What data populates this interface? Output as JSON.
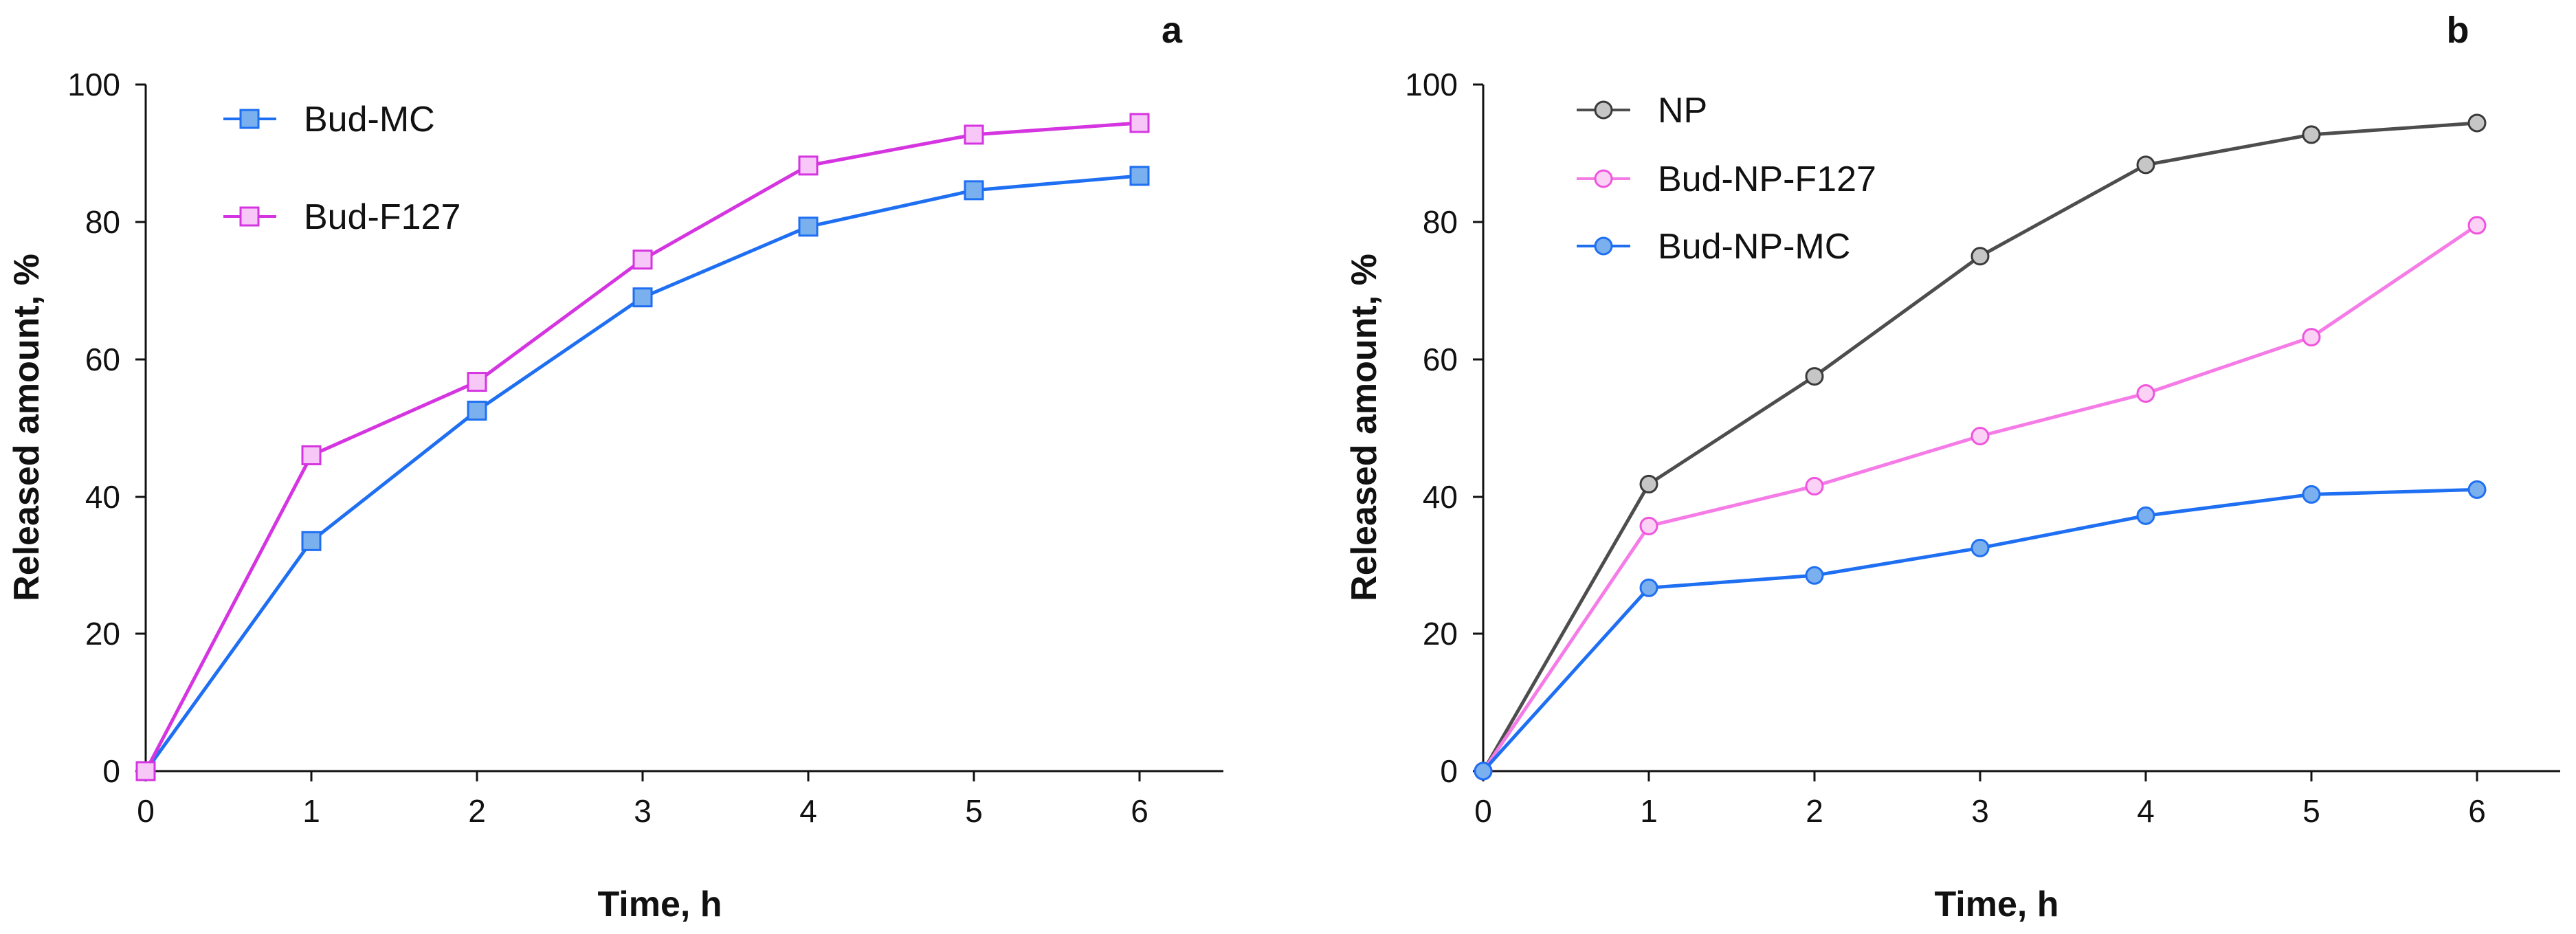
{
  "chart_data": [
    {
      "type": "line",
      "panel": "a",
      "title": "",
      "xlabel": "Time, h",
      "ylabel": "Released amount, %",
      "x": [
        0,
        1,
        2,
        3,
        4,
        5,
        6
      ],
      "xlim": [
        0,
        6.5
      ],
      "ylim": [
        0,
        100
      ],
      "xticks": [
        "0",
        "1",
        "2",
        "3",
        "4",
        "5",
        "6"
      ],
      "yticks": [
        "0",
        "20",
        "40",
        "60",
        "80",
        "100"
      ],
      "grid": false,
      "legend_position": "top-left",
      "series": [
        {
          "name": "Bud-MC",
          "marker": "square",
          "line_color": "#1f6ff2",
          "fill_color": "#7ab0ee",
          "edge_color": "#1f6ff2",
          "values": [
            0,
            33.5,
            52.5,
            69,
            79.3,
            84.6,
            86.7
          ]
        },
        {
          "name": "Bud-F127",
          "marker": "square",
          "line_color": "#d535e0",
          "fill_color": "#f7c8f7",
          "edge_color": "#d535e0",
          "values": [
            0,
            46,
            56.7,
            74.5,
            88.2,
            92.7,
            94.4
          ]
        }
      ]
    },
    {
      "type": "line",
      "panel": "b",
      "title": "",
      "xlabel": "Time, h",
      "ylabel": "Released amount, %",
      "x": [
        0,
        1,
        2,
        3,
        4,
        5,
        6
      ],
      "xlim": [
        0,
        6.5
      ],
      "ylim": [
        0,
        100
      ],
      "xticks": [
        "0",
        "1",
        "2",
        "3",
        "4",
        "5",
        "6"
      ],
      "yticks": [
        "0",
        "20",
        "40",
        "60",
        "80",
        "100"
      ],
      "grid": false,
      "legend_position": "top-left",
      "series": [
        {
          "name": "NP",
          "marker": "circle",
          "line_color": "#4d4d4d",
          "fill_color": "#c6c6c6",
          "edge_color": "#3a3a3a",
          "values": [
            0,
            41.8,
            57.5,
            75,
            88.3,
            92.7,
            94.4
          ]
        },
        {
          "name": "Bud-NP-F127",
          "marker": "circle",
          "line_color": "#f57ce6",
          "fill_color": "#fbd2f6",
          "edge_color": "#ef55dc",
          "values": [
            0,
            35.7,
            41.5,
            48.8,
            55,
            63.2,
            79.5
          ]
        },
        {
          "name": "Bud-NP-MC",
          "marker": "circle",
          "line_color": "#1f6ff2",
          "fill_color": "#7ab0ee",
          "edge_color": "#1f6ff2",
          "values": [
            0,
            26.7,
            28.5,
            32.5,
            37.2,
            40.3,
            41
          ]
        }
      ]
    }
  ]
}
